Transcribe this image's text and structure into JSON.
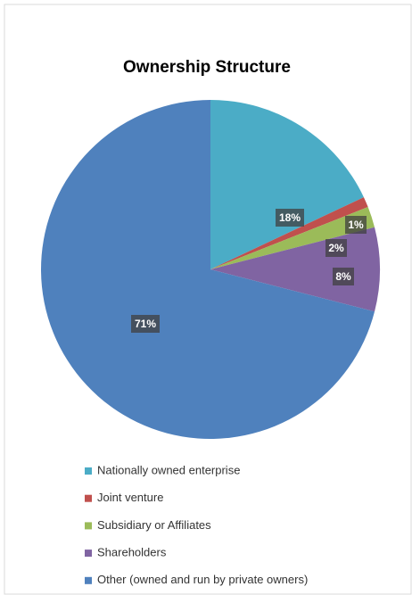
{
  "chart_data": {
    "type": "pie",
    "title": "Ownership Structure",
    "categories": [
      "Nationally owned enterprise",
      "Joint venture",
      "Subsidiary or Affiliates",
      "Shareholders",
      "Other (owned and run by private owners)"
    ],
    "values": [
      18,
      1,
      2,
      8,
      71
    ],
    "value_labels": [
      "18%",
      "1%",
      "2%",
      "8%",
      "71%"
    ],
    "colors": [
      "#4bacc6",
      "#c0504d",
      "#9bbb59",
      "#8064a2",
      "#4f81bd"
    ],
    "legend": "bottom"
  }
}
